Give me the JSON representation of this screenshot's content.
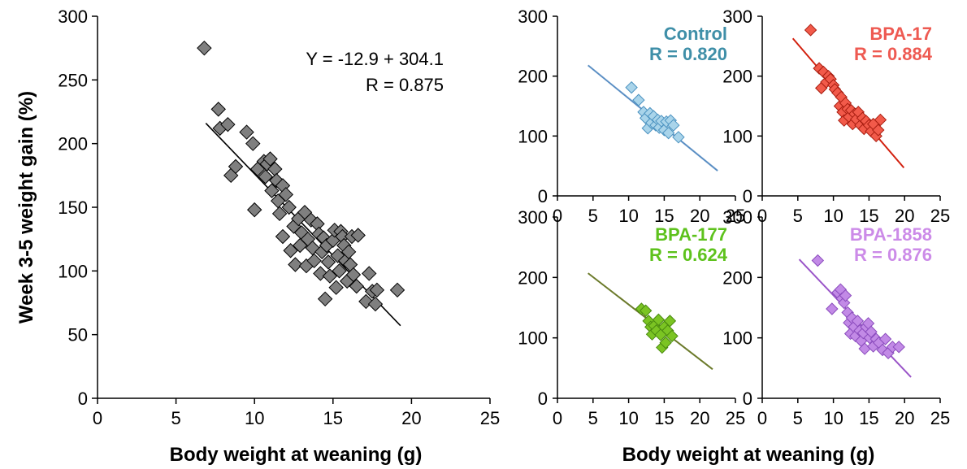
{
  "ylabel": "Week 3-5 weight gain (%)",
  "xlabel_main": "Body weight at weaning (g)",
  "xlabel_small": "Body weight at weaning (g)",
  "chart_data": [
    {
      "type": "scatter",
      "panel": "main",
      "xlim": [
        0,
        25
      ],
      "ylim": [
        0,
        300
      ],
      "xticks": [
        0,
        5,
        10,
        15,
        20,
        25
      ],
      "yticks": [
        0,
        50,
        100,
        150,
        200,
        250,
        300
      ],
      "equation": "Y = -12.9 + 304.1",
      "r_label": "R = 0.875",
      "color": "#7f7f7f",
      "line_color": "#000000",
      "line": [
        [
          6.9,
          216
        ],
        [
          19.3,
          57
        ]
      ],
      "points": [
        [
          6.8,
          275
        ],
        [
          7.7,
          227
        ],
        [
          7.8,
          212
        ],
        [
          8.3,
          215
        ],
        [
          8.5,
          175
        ],
        [
          8.8,
          182
        ],
        [
          9.5,
          209
        ],
        [
          9.9,
          200
        ],
        [
          10.0,
          148
        ],
        [
          10.2,
          180
        ],
        [
          10.6,
          186
        ],
        [
          10.7,
          174
        ],
        [
          10.8,
          184
        ],
        [
          11.0,
          188
        ],
        [
          11.1,
          163
        ],
        [
          11.3,
          180
        ],
        [
          11.4,
          171
        ],
        [
          11.5,
          155
        ],
        [
          11.6,
          145
        ],
        [
          11.8,
          167
        ],
        [
          11.8,
          127
        ],
        [
          12.0,
          160
        ],
        [
          12.2,
          150
        ],
        [
          12.3,
          116
        ],
        [
          12.5,
          135
        ],
        [
          12.6,
          105
        ],
        [
          12.8,
          141
        ],
        [
          12.9,
          120
        ],
        [
          13.0,
          130
        ],
        [
          13.2,
          146
        ],
        [
          13.3,
          104
        ],
        [
          13.4,
          125
        ],
        [
          13.6,
          140
        ],
        [
          13.7,
          118
        ],
        [
          13.8,
          108
        ],
        [
          14.0,
          137
        ],
        [
          14.1,
          129
        ],
        [
          14.2,
          98
        ],
        [
          14.3,
          115
        ],
        [
          14.4,
          126
        ],
        [
          14.5,
          78
        ],
        [
          14.6,
          120
        ],
        [
          14.7,
          107
        ],
        [
          14.8,
          96
        ],
        [
          15.0,
          124
        ],
        [
          15.1,
          132
        ],
        [
          15.2,
          87
        ],
        [
          15.3,
          112
        ],
        [
          15.4,
          100
        ],
        [
          15.5,
          131
        ],
        [
          15.6,
          127
        ],
        [
          15.7,
          120
        ],
        [
          15.8,
          108
        ],
        [
          15.9,
          92
        ],
        [
          16.0,
          115
        ],
        [
          16.1,
          105
        ],
        [
          16.2,
          127
        ],
        [
          16.3,
          97
        ],
        [
          16.5,
          88
        ],
        [
          16.6,
          128
        ],
        [
          17.1,
          76
        ],
        [
          17.3,
          98
        ],
        [
          17.5,
          84
        ],
        [
          17.7,
          74
        ],
        [
          17.8,
          85
        ],
        [
          19.1,
          85
        ]
      ]
    },
    {
      "type": "scatter",
      "panel": "top-left",
      "name": "Control",
      "r_label": "R = 0.820",
      "xlim": [
        0,
        25
      ],
      "ylim": [
        0,
        300
      ],
      "xticks": [
        0,
        5,
        10,
        15,
        20,
        25
      ],
      "yticks": [
        0,
        100,
        200,
        300
      ],
      "color": "#a9d4ea",
      "stroke": "#4b92c0",
      "label_color": "#3f8fa8",
      "line_color": "#5b8fc4",
      "line": [
        [
          4.3,
          218
        ],
        [
          22.5,
          42
        ]
      ],
      "points": [
        [
          10.4,
          181
        ],
        [
          11.4,
          160
        ],
        [
          12.1,
          140
        ],
        [
          12.4,
          130
        ],
        [
          12.7,
          113
        ],
        [
          13.0,
          138
        ],
        [
          13.2,
          122
        ],
        [
          13.5,
          133
        ],
        [
          13.8,
          118
        ],
        [
          14.1,
          127
        ],
        [
          14.3,
          114
        ],
        [
          14.6,
          125
        ],
        [
          15.0,
          110
        ],
        [
          15.3,
          124
        ],
        [
          15.6,
          105
        ],
        [
          15.9,
          126
        ],
        [
          16.3,
          118
        ],
        [
          17.0,
          98
        ]
      ]
    },
    {
      "type": "scatter",
      "panel": "top-right",
      "name": "BPA-17",
      "r_label": "R = 0.884",
      "xlim": [
        0,
        25
      ],
      "ylim": [
        0,
        300
      ],
      "xticks": [
        0,
        5,
        10,
        15,
        20,
        25
      ],
      "yticks": [
        0,
        100,
        200,
        300
      ],
      "color": "#f25a4a",
      "stroke": "#a81d10",
      "label_color": "#ee5a52",
      "line_color": "#d2200e",
      "line": [
        [
          4.3,
          263
        ],
        [
          19.9,
          47
        ]
      ],
      "points": [
        [
          6.8,
          277
        ],
        [
          8.0,
          213
        ],
        [
          8.3,
          180
        ],
        [
          8.6,
          207
        ],
        [
          9.0,
          190
        ],
        [
          9.3,
          200
        ],
        [
          9.6,
          195
        ],
        [
          10.0,
          185
        ],
        [
          10.2,
          178
        ],
        [
          10.6,
          172
        ],
        [
          10.9,
          150
        ],
        [
          11.1,
          165
        ],
        [
          11.3,
          140
        ],
        [
          11.5,
          126
        ],
        [
          11.7,
          155
        ],
        [
          12.0,
          145
        ],
        [
          12.2,
          132
        ],
        [
          12.5,
          143
        ],
        [
          12.7,
          120
        ],
        [
          13.0,
          137
        ],
        [
          13.2,
          128
        ],
        [
          13.5,
          140
        ],
        [
          13.8,
          118
        ],
        [
          14.1,
          130
        ],
        [
          14.3,
          112
        ],
        [
          14.6,
          125
        ],
        [
          15.0,
          118
        ],
        [
          15.3,
          108
        ],
        [
          15.6,
          120
        ],
        [
          16.0,
          100
        ],
        [
          16.3,
          110
        ],
        [
          16.6,
          127
        ]
      ]
    },
    {
      "type": "scatter",
      "panel": "bottom-left",
      "name": "BPA-177",
      "r_label": "R = 0.624",
      "xlim": [
        0,
        25
      ],
      "ylim": [
        0,
        300
      ],
      "xticks": [
        0,
        5,
        10,
        15,
        20,
        25
      ],
      "yticks": [
        0,
        100,
        200,
        300
      ],
      "color": "#7bc423",
      "stroke": "#4a8a10",
      "label_color": "#5ec21d",
      "line_color": "#6b7a2a",
      "line": [
        [
          4.3,
          207
        ],
        [
          21.8,
          48
        ]
      ],
      "points": [
        [
          11.8,
          148
        ],
        [
          12.4,
          145
        ],
        [
          12.8,
          128
        ],
        [
          13.1,
          118
        ],
        [
          13.3,
          106
        ],
        [
          13.6,
          120
        ],
        [
          13.9,
          112
        ],
        [
          14.2,
          130
        ],
        [
          14.5,
          105
        ],
        [
          14.7,
          84
        ],
        [
          15.0,
          118
        ],
        [
          15.2,
          92
        ],
        [
          15.5,
          112
        ],
        [
          15.8,
          128
        ],
        [
          16.1,
          103
        ]
      ]
    },
    {
      "type": "scatter",
      "panel": "bottom-right",
      "name": "BPA-1858",
      "r_label": "R = 0.876",
      "xlim": [
        0,
        25
      ],
      "ylim": [
        0,
        300
      ],
      "xticks": [
        0,
        5,
        10,
        15,
        20,
        25
      ],
      "yticks": [
        0,
        100,
        200,
        300
      ],
      "color": "#c28ae6",
      "stroke": "#8a4bbd",
      "label_color": "#cc8be8",
      "line_color": "#9a55c8",
      "line": [
        [
          5.2,
          230
        ],
        [
          20.9,
          35
        ]
      ],
      "points": [
        [
          7.8,
          228
        ],
        [
          9.8,
          148
        ],
        [
          10.6,
          175
        ],
        [
          11.0,
          180
        ],
        [
          11.2,
          165
        ],
        [
          11.5,
          158
        ],
        [
          11.7,
          170
        ],
        [
          12.0,
          142
        ],
        [
          12.2,
          125
        ],
        [
          12.4,
          107
        ],
        [
          12.6,
          133
        ],
        [
          12.9,
          118
        ],
        [
          13.1,
          103
        ],
        [
          13.4,
          128
        ],
        [
          13.7,
          112
        ],
        [
          13.9,
          95
        ],
        [
          14.2,
          108
        ],
        [
          14.4,
          82
        ],
        [
          14.6,
          118
        ],
        [
          14.9,
          124
        ],
        [
          15.1,
          100
        ],
        [
          15.3,
          110
        ],
        [
          15.6,
          86
        ],
        [
          16.0,
          98
        ],
        [
          16.4,
          92
        ],
        [
          16.9,
          80
        ],
        [
          17.3,
          98
        ],
        [
          17.7,
          75
        ],
        [
          18.3,
          85
        ],
        [
          19.2,
          85
        ]
      ]
    }
  ]
}
